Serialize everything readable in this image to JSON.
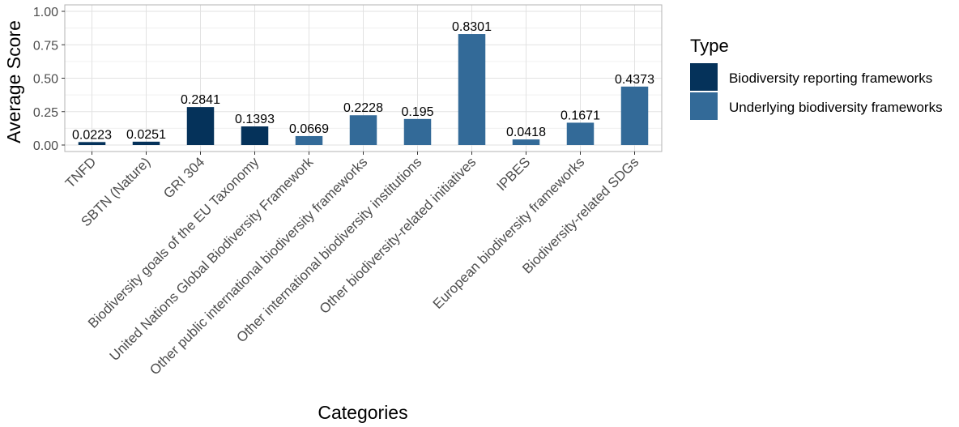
{
  "chart_data": {
    "type": "bar",
    "xlabel": "Categories",
    "ylabel": "Average Score",
    "ylim": [
      0,
      1.0
    ],
    "yticks": [
      "0.00",
      "0.25",
      "0.50",
      "0.75",
      "1.00"
    ],
    "grid": true,
    "legend": {
      "title": "Type",
      "position": "right",
      "entries": [
        {
          "name": "Biodiversity reporting frameworks",
          "color": "#05325a"
        },
        {
          "name": "Underlying biodiversity frameworks",
          "color": "#336a98"
        }
      ]
    },
    "categories": [
      "TNFD",
      "SBTN (Nature)",
      "GRI 304",
      "Biodiversity goals of the EU Taxonomy",
      "United Nations Global Biodiversity Framework",
      "Other public international biodiversity frameworks",
      "Other international biodiversity institutions",
      "Other biodiversity-related initiatives",
      "IPBES",
      "European biodiversity frameworks",
      "Biodiversity-related SDGs"
    ],
    "values": [
      0.0223,
      0.0251,
      0.2841,
      0.1393,
      0.0669,
      0.2228,
      0.195,
      0.8301,
      0.0418,
      0.1671,
      0.4373
    ],
    "value_labels": [
      "0.0223",
      "0.0251",
      "0.2841",
      "0.1393",
      "0.0669",
      "0.2228",
      "0.195",
      "0.8301",
      "0.0418",
      "0.1671",
      "0.4373"
    ],
    "types": [
      "Biodiversity reporting frameworks",
      "Biodiversity reporting frameworks",
      "Biodiversity reporting frameworks",
      "Biodiversity reporting frameworks",
      "Underlying biodiversity frameworks",
      "Underlying biodiversity frameworks",
      "Underlying biodiversity frameworks",
      "Underlying biodiversity frameworks",
      "Underlying biodiversity frameworks",
      "Underlying biodiversity frameworks",
      "Underlying biodiversity frameworks"
    ]
  }
}
